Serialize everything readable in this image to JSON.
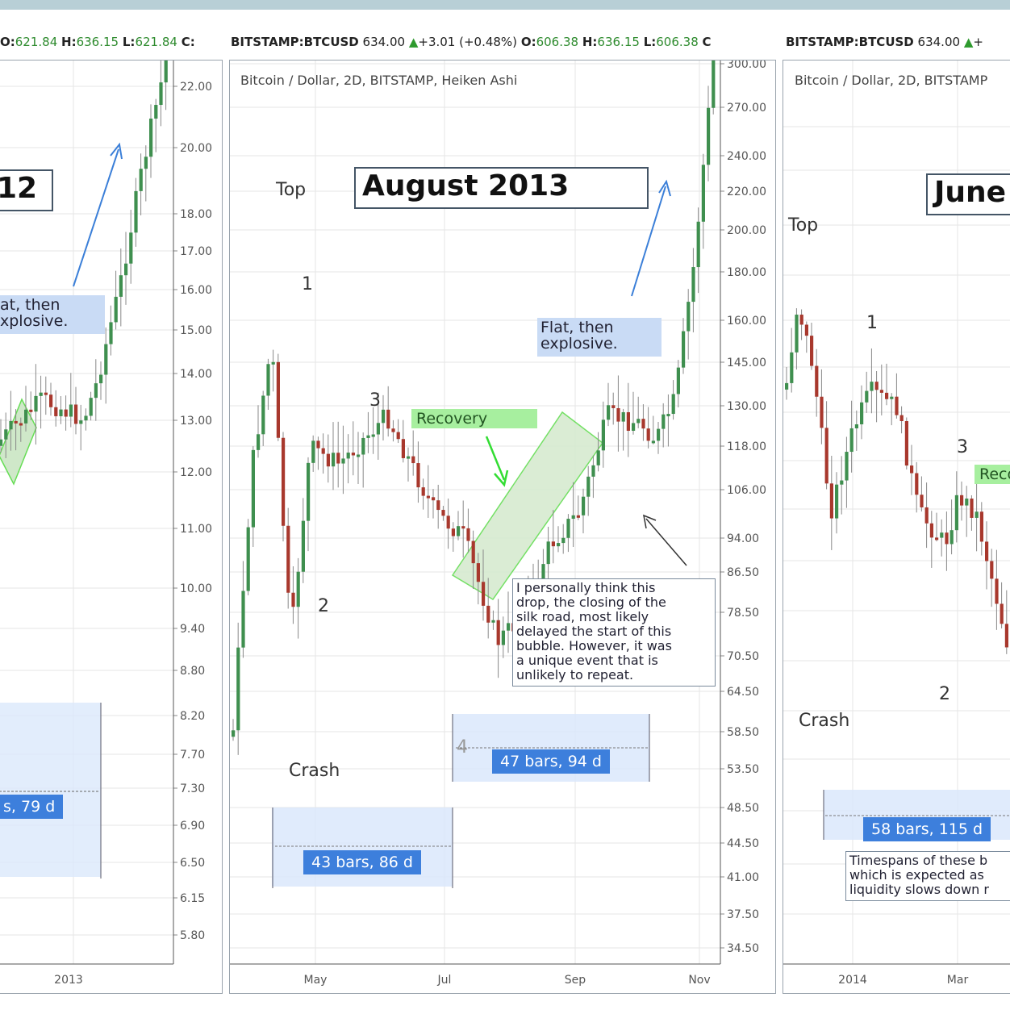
{
  "headers": [
    {
      "o_label": "O:",
      "o": "621.84",
      "h_label": "H:",
      "h": "636.15",
      "l_label": "L:",
      "l": "621.84",
      "c_label": "C:"
    },
    {
      "symbol": "BITSTAMP:BTCUSD",
      "price": "634.00",
      "arrow": "▲",
      "change": "+3.01 (+0.48%)",
      "o_label": "O:",
      "o": "606.38",
      "h_label": "H:",
      "h": "636.15",
      "l_label": "L:",
      "l": "606.38",
      "c_label": "C"
    },
    {
      "symbol": "BITSTAMP:BTCUSD",
      "price": "634.00",
      "arrow": "▲",
      "change": "+"
    }
  ],
  "colors": {
    "bull": "#3f8f4f",
    "bear": "#a8382d",
    "wick": "#888888",
    "accent": "#3d7fdc",
    "recovery": "#a7ef9f",
    "note_bg": "#c9dbf5"
  },
  "annotations": {
    "left_title": "12",
    "left_flat_1": "at, then",
    "left_flat_2": "xplosive.",
    "left_bars": "s, 79 d",
    "mid_title": "August 2013",
    "mid_top": "Top",
    "mid_crash": "Crash",
    "mid_1": "1",
    "mid_2": "2",
    "mid_3": "3",
    "mid_4": "4",
    "mid_recovery": "Recovery",
    "mid_flat_1": "Flat, then",
    "mid_flat_2": "explosive.",
    "mid_note": "I personally think this\ndrop, the closing of the\nsilk road, most likely\ndelayed the start of this\nbubble. However, it was\na unique event that is\nunlikely to repeat.",
    "mid_bars_a": "43 bars, 86 d",
    "mid_bars_b": "47 bars, 94 d",
    "right_title": "June",
    "right_top": "Top",
    "right_crash": "Crash",
    "right_1": "1",
    "right_2": "2",
    "right_3": "3",
    "right_recovery": "Reco",
    "right_bars": "58 bars, 115 d",
    "right_note": "Timespans of these b\nwhich is expected as\nliquidity slows down r"
  },
  "chart_data": [
    {
      "type": "candlestick",
      "title": "",
      "y_ticks": [
        "22.00",
        "20.00",
        "18.00",
        "17.00",
        "16.00",
        "15.00",
        "14.00",
        "13.00",
        "12.00",
        "11.00",
        "10.00",
        "9.40",
        "8.80",
        "8.20",
        "7.70",
        "7.30",
        "6.90",
        "6.50",
        "6.15",
        "5.80"
      ],
      "x_ticks": [
        "2013"
      ],
      "scale": "log"
    },
    {
      "type": "candlestick",
      "title": "Bitcoin / Dollar, 2D, BITSTAMP, Heiken Ashi",
      "y_ticks": [
        "300.00",
        "270.00",
        "240.00",
        "220.00",
        "200.00",
        "180.00",
        "160.00",
        "145.00",
        "130.00",
        "118.00",
        "106.00",
        "94.00",
        "86.50",
        "78.50",
        "70.50",
        "64.50",
        "58.50",
        "53.50",
        "48.50",
        "44.50",
        "41.00",
        "37.50",
        "34.50"
      ],
      "x_ticks": [
        "May",
        "Jul",
        "Sep",
        "Nov"
      ],
      "scale": "log"
    },
    {
      "type": "candlestick",
      "title": "Bitcoin / Dollar, 2D, BITSTAMP",
      "x_ticks": [
        "2014",
        "Mar"
      ],
      "scale": "log"
    }
  ]
}
